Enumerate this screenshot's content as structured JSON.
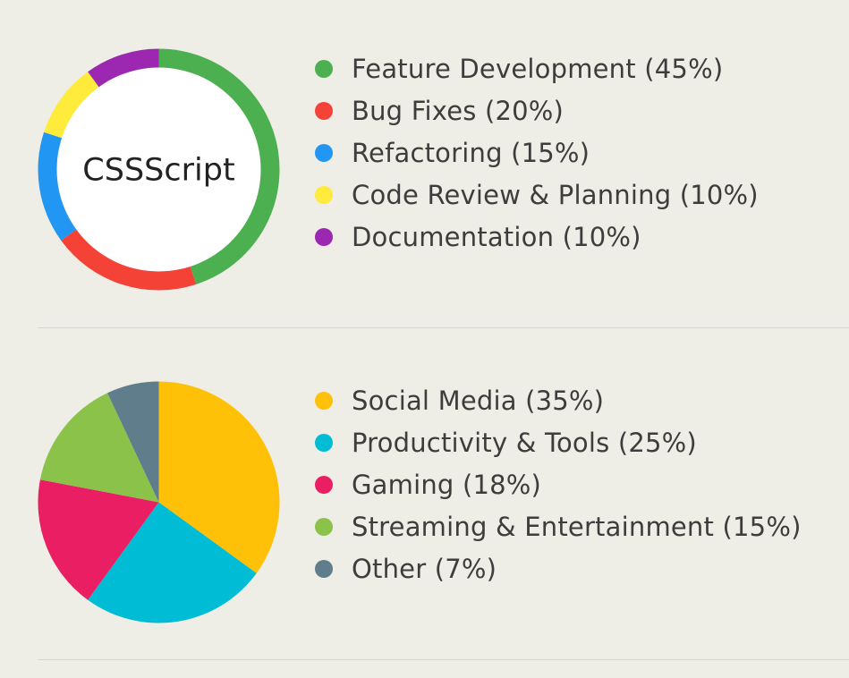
{
  "chart_data": [
    {
      "type": "pie",
      "variant": "donut",
      "center_label": "CSSScript",
      "categories": [
        "Feature Development",
        "Bug Fixes",
        "Refactoring",
        "Code Review & Planning",
        "Documentation"
      ],
      "values": [
        45,
        20,
        15,
        10,
        10
      ],
      "colors": [
        "#4caf50",
        "#f44336",
        "#2196f3",
        "#ffeb3b",
        "#9c27b0"
      ],
      "legend_labels": [
        "Feature Development (45%)",
        "Bug Fixes (20%)",
        "Refactoring (15%)",
        "Code Review & Planning (10%)",
        "Documentation (10%)"
      ],
      "legend_position": "right"
    },
    {
      "type": "pie",
      "categories": [
        "Social Media",
        "Productivity & Tools",
        "Gaming",
        "Streaming & Entertainment",
        "Other"
      ],
      "values": [
        35,
        25,
        18,
        15,
        7
      ],
      "colors": [
        "#ffc107",
        "#00bcd4",
        "#e91e63",
        "#8bc34a",
        "#607d8b"
      ],
      "legend_labels": [
        "Social Media (35%)",
        "Productivity & Tools (25%)",
        "Gaming (18%)",
        "Streaming & Entertainment (15%)",
        "Other (7%)"
      ],
      "legend_position": "right"
    }
  ]
}
